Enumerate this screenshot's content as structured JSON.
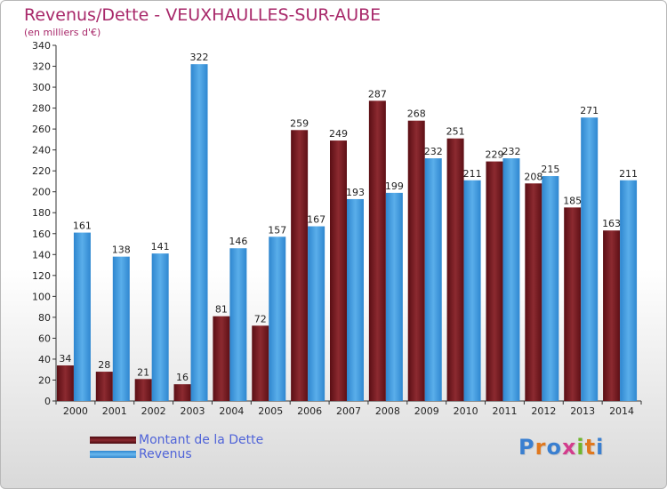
{
  "header": {
    "title": "Revenus/Dette - VEUXHAULLES-SUR-AUBE",
    "subtitle": "(en milliers d'€)"
  },
  "colors": {
    "dette": "#7a1a20",
    "revenus": "#3d98de",
    "title": "#a8286a",
    "legend_text": "#4f63d8"
  },
  "legend": {
    "items": [
      {
        "label": "Montant de la Dette",
        "color": "#7a1a20"
      },
      {
        "label": "Revenus",
        "color": "#3d98de"
      }
    ]
  },
  "logo": {
    "text": "Proxiti"
  },
  "chart_data": {
    "type": "bar",
    "title": "Revenus/Dette - VEUXHAULLES-SUR-AUBE",
    "subtitle": "(en milliers d'€)",
    "xlabel": "",
    "ylabel": "",
    "categories": [
      "2000",
      "2001",
      "2002",
      "2003",
      "2004",
      "2005",
      "2006",
      "2007",
      "2008",
      "2009",
      "2010",
      "2011",
      "2012",
      "2013",
      "2014"
    ],
    "series": [
      {
        "name": "Montant de la Dette",
        "color": "#7a1a20",
        "values": [
          34,
          28,
          21,
          16,
          81,
          72,
          259,
          249,
          287,
          268,
          251,
          229,
          208,
          185,
          163
        ]
      },
      {
        "name": "Revenus",
        "color": "#3d98de",
        "values": [
          161,
          138,
          141,
          322,
          146,
          157,
          167,
          193,
          199,
          232,
          211,
          232,
          215,
          271,
          211
        ]
      }
    ],
    "ylim": [
      0,
      340
    ],
    "ytick_step": 20,
    "grid": false,
    "legend_position": "bottom-left"
  }
}
